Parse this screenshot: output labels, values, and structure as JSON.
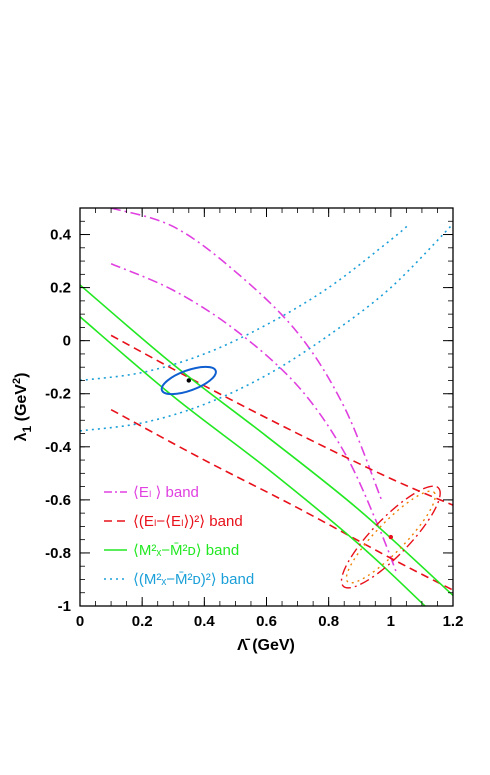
{
  "chart_data": {
    "type": "line",
    "title": "",
    "xlabel": "Λ̄  (GeV)",
    "ylabel_main": "λ",
    "ylabel_sub": "1",
    "ylabel_units": "  (GeV",
    "ylabel_units_sup": "2",
    "ylabel_units_close": ")",
    "xlim": [
      0,
      1.2
    ],
    "ylim": [
      -1,
      0.5
    ],
    "xticks": [
      0,
      0.2,
      0.4,
      0.6,
      0.8,
      1,
      1.2
    ],
    "xtick_labels": [
      "0",
      "0.2",
      "0.4",
      "0.6",
      "0.8",
      "1",
      "1.2"
    ],
    "yticks": [
      -1,
      -0.8,
      -0.6,
      -0.4,
      -0.2,
      0,
      0.2,
      0.4
    ],
    "ytick_labels": [
      "-1",
      "-0.8",
      "-0.6",
      "-0.4",
      "-0.2",
      "0",
      "0.2",
      "0.4"
    ],
    "grid": false,
    "legend_position": "bottom-left",
    "legend": [
      {
        "label": "⟨Eₗ ⟩  band",
        "color": "#e040e0",
        "style": "dashdot"
      },
      {
        "label": "⟨(Eₗ−⟨Eₗ⟩)²⟩ band",
        "color": "#e8101a",
        "style": "dashed"
      },
      {
        "label": "⟨M²ₓ−M̄²ᴅ⟩ band",
        "color": "#22e822",
        "style": "solid"
      },
      {
        "label": "⟨(M²ₓ−M̄²ᴅ)²⟩ band",
        "color": "#1a9fd8",
        "style": "dotted"
      }
    ],
    "series": [
      {
        "band": "magenta",
        "style": "dashdot",
        "color": "#e040e0",
        "x": [
          0.1,
          0.3,
          0.5,
          0.7,
          0.85,
          0.97
        ],
        "y": [
          0.5,
          0.43,
          0.26,
          0.03,
          -0.25,
          -0.6
        ]
      },
      {
        "band": "magenta",
        "style": "dashdot",
        "color": "#e040e0",
        "x": [
          0.1,
          0.3,
          0.5,
          0.7,
          0.85,
          0.96,
          1.02
        ],
        "y": [
          0.29,
          0.19,
          0.04,
          -0.17,
          -0.42,
          -0.7,
          -0.88
        ]
      },
      {
        "band": "red",
        "style": "dashed",
        "color": "#e8101a",
        "x": [
          0.1,
          0.4,
          0.7,
          1.0,
          1.2
        ],
        "y": [
          0.02,
          -0.17,
          -0.35,
          -0.52,
          -0.62
        ]
      },
      {
        "band": "red",
        "style": "dashed",
        "color": "#e8101a",
        "x": [
          0.1,
          0.4,
          0.7,
          1.0,
          1.2
        ],
        "y": [
          -0.26,
          -0.45,
          -0.63,
          -0.82,
          -0.94
        ]
      },
      {
        "band": "green",
        "style": "solid",
        "color": "#22e822",
        "x": [
          0,
          0.3,
          0.6,
          0.9,
          1.2
        ],
        "y": [
          0.21,
          -0.09,
          -0.36,
          -0.64,
          -0.96
        ]
      },
      {
        "band": "green",
        "style": "solid",
        "color": "#22e822",
        "x": [
          0,
          0.3,
          0.6,
          0.9,
          1.11
        ],
        "y": [
          0.09,
          -0.21,
          -0.48,
          -0.77,
          -1.0
        ]
      },
      {
        "band": "cyan",
        "style": "dotted",
        "color": "#1a9fd8",
        "x": [
          0,
          0.2,
          0.4,
          0.6,
          0.8,
          1.0,
          1.06
        ],
        "y": [
          -0.15,
          -0.12,
          -0.05,
          0.06,
          0.2,
          0.38,
          0.44
        ]
      },
      {
        "band": "cyan",
        "style": "dotted",
        "color": "#1a9fd8",
        "x": [
          0,
          0.2,
          0.4,
          0.6,
          0.8,
          1.0,
          1.2
        ],
        "y": [
          -0.34,
          -0.31,
          -0.24,
          -0.13,
          0.02,
          0.2,
          0.44
        ]
      }
    ],
    "ellipses": [
      {
        "name": "fit",
        "color": "#0f5fd0",
        "style": "solid",
        "cx": 0.35,
        "cy": -0.15,
        "rx": 0.092,
        "ry": 0.038,
        "angle_deg": -20,
        "center_dot": true
      },
      {
        "name": "red-ellipse",
        "color": "#e8101a",
        "style": "dashdot",
        "cx": 1.0,
        "cy": -0.74,
        "rx": 0.22,
        "ry": 0.07,
        "angle_deg": -46,
        "center_dot": true
      },
      {
        "name": "orange-ellipse",
        "color": "#f08000",
        "style": "dotted",
        "cx": 1.0,
        "cy": -0.74,
        "rx": 0.2,
        "ry": 0.055,
        "angle_deg": -46,
        "center_dot": false
      }
    ]
  }
}
